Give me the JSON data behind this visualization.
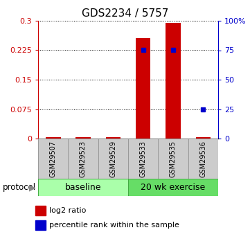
{
  "title": "GDS2234 / 5757",
  "samples": [
    "GSM29507",
    "GSM29523",
    "GSM29529",
    "GSM29533",
    "GSM29535",
    "GSM29536"
  ],
  "log2_ratio": [
    0.0,
    0.0,
    0.0,
    0.255,
    0.295,
    0.003
  ],
  "percentile_rank": [
    0.0,
    0.0,
    0.0,
    0.225,
    0.225,
    0.075
  ],
  "left_yticks": [
    0,
    0.075,
    0.15,
    0.225,
    0.3
  ],
  "right_yticks": [
    0,
    25,
    50,
    75,
    100
  ],
  "left_yticklabels": [
    "0",
    "0.075",
    "0.15",
    "0.225",
    "0.3"
  ],
  "right_yticklabels": [
    "0",
    "25",
    "50",
    "75",
    "100%"
  ],
  "ylim": [
    0,
    0.3
  ],
  "right_ylim": [
    0,
    100
  ],
  "bar_color": "#cc0000",
  "dot_color": "#0000cc",
  "baseline_color": "#aaffaa",
  "exercise_color": "#66dd66",
  "sample_box_color": "#cccccc",
  "sample_box_edge": "#999999",
  "legend_bar_color": "#cc0000",
  "legend_dot_color": "#0000cc",
  "background_color": "#ffffff",
  "title_fontsize": 11,
  "tick_fontsize": 8,
  "sample_fontsize": 7,
  "proto_fontsize": 9,
  "legend_fontsize": 8,
  "bar_width": 0.5
}
